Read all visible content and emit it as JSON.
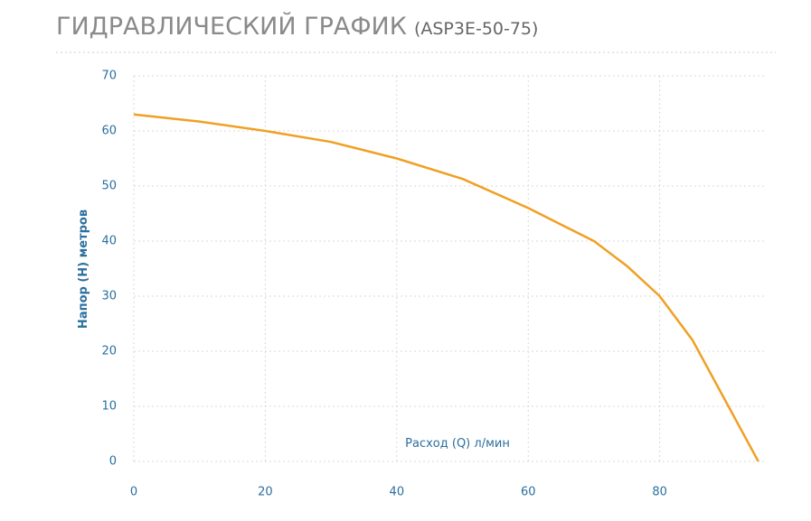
{
  "chart_data": {
    "type": "line",
    "title": "ГИДРАВЛИЧЕСКИЙ ГРАФИК",
    "subtitle": "(ASP3E-50-75)",
    "x_label": "Расход (Q) л/мин",
    "y_label": "Напор (H) метров",
    "x": [
      0,
      10,
      20,
      30,
      40,
      50,
      60,
      65,
      70,
      75,
      80,
      85,
      90,
      95
    ],
    "series": [
      {
        "name": "ASP3E-50-75",
        "color": "#f0a024",
        "values": [
          63,
          61.7,
          60,
          58,
          55,
          51.3,
          46,
          43,
          40,
          35.5,
          30,
          22,
          11,
          0
        ]
      }
    ],
    "xlim": [
      0,
      96
    ],
    "ylim": [
      0,
      70
    ],
    "xticks": [
      0,
      20,
      40,
      60,
      80
    ],
    "yticks": [
      0,
      10,
      20,
      30,
      40,
      50,
      60,
      70
    ],
    "grid": true
  }
}
